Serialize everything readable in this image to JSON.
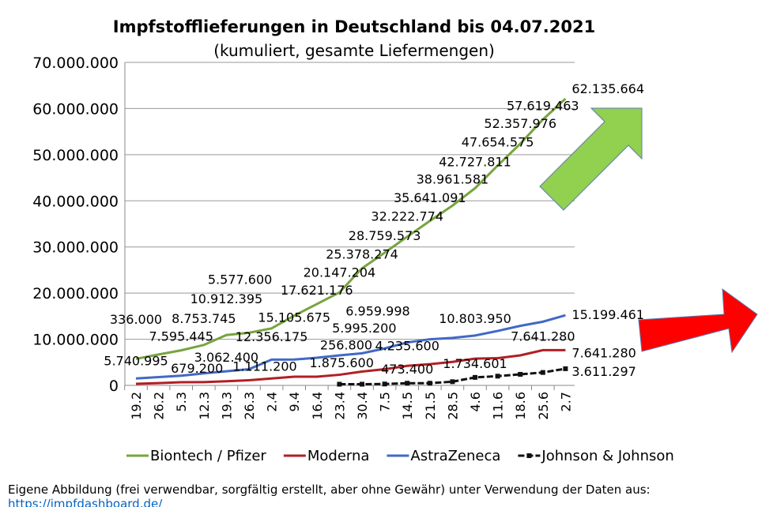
{
  "chart_data": {
    "type": "line",
    "title": "Impfstofflieferungen in Deutschland bis 04.07.2021",
    "subtitle": "(kumuliert, gesamte Liefermengen)",
    "xlabel": "",
    "ylabel": "",
    "ylim": [
      0,
      70000000
    ],
    "yticks": [
      "0",
      "10.000.000",
      "20.000.000",
      "30.000.000",
      "40.000.000",
      "50.000.000",
      "60.000.000",
      "70.000.000"
    ],
    "grid": true,
    "legend": "bottom",
    "categories": [
      "19.2",
      "26.2",
      "5.3",
      "12.3",
      "19.3",
      "26.3",
      "2.4",
      "9.4",
      "16.4",
      "23.4",
      "30.4",
      "7.5",
      "14.5",
      "21.5",
      "28.5",
      "4.6",
      "11.6",
      "18.6",
      "25.6",
      "2.7"
    ],
    "series": [
      {
        "name": "Biontech / Pfizer",
        "color": "#77a43f",
        "marker": false,
        "values": [
          5740995,
          6700000,
          7595445,
          8753745,
          10912395,
          11400000,
          12356175,
          15105675,
          17621176,
          20147204,
          25378274,
          28759573,
          32222774,
          35641091,
          38961581,
          42727811,
          47654575,
          52357976,
          57619463,
          62135664
        ],
        "labels": [
          "5.740.995",
          "",
          "7.595.445",
          "8.753.745",
          "10.912.395",
          "",
          "12.356.175",
          "15.105.675",
          "17.621.176",
          "20.147.204",
          "25.378.274",
          "28.759.573",
          "32.222.774",
          "35.641.091",
          "38.961.581",
          "42.727.811",
          "47.654.575",
          "52.357.976",
          "57.619.463",
          "62.135.664"
        ]
      },
      {
        "name": "Moderna",
        "color": "#b11f24",
        "marker": false,
        "values": [
          336000,
          500000,
          679200,
          700000,
          900000,
          1111200,
          1500000,
          1875600,
          1875600,
          2300000,
          3000000,
          3500000,
          4235600,
          4600000,
          5100000,
          5800000,
          5900000,
          6500000,
          7641280,
          7641280
        ],
        "labels": [
          "336.000",
          "",
          "679.200",
          "",
          "",
          "1.111.200",
          "",
          "1.875.600",
          "",
          "",
          "",
          "",
          "4.235.600",
          "",
          "",
          "",
          "",
          "",
          "7.641.280",
          "7.641.280"
        ]
      },
      {
        "name": "AstraZeneca",
        "color": "#4169c4",
        "marker": false,
        "values": [
          1500000,
          1800000,
          2100000,
          2600000,
          3062400,
          3500000,
          5577600,
          5600000,
          5995200,
          6500000,
          6959998,
          8000000,
          9300000,
          10000000,
          10300000,
          10803950,
          11800000,
          12900000,
          13800000,
          15199461
        ],
        "labels": [
          "",
          "",
          "",
          "",
          "3.062.400",
          "",
          "5.577.600",
          "",
          "5.995.200",
          "",
          "6.959.998",
          "",
          "",
          "",
          "",
          "10.803.950",
          "",
          "",
          "",
          "15.199.461"
        ]
      },
      {
        "name": "Johnson & Johnson",
        "color": "#111111",
        "marker": true,
        "values": [
          null,
          null,
          null,
          null,
          null,
          null,
          null,
          null,
          null,
          256800,
          256800,
          300000,
          473400,
          473400,
          800000,
          1734601,
          2000000,
          2400000,
          2800000,
          3611297
        ],
        "labels": [
          "",
          "",
          "",
          "",
          "",
          "",
          "",
          "",
          "",
          "",
          "256.800",
          "",
          "473.400",
          "",
          "",
          "1.734.601",
          "",
          "",
          "",
          "3.611.297"
        ]
      }
    ]
  },
  "footer": {
    "text": "Eigene Abbildung (frei verwendbar, sorgfältig erstellt, aber ohne Gewähr) unter Verwendung der Daten aus: ",
    "link": "https://impfdashboard.de/"
  },
  "decorations": {
    "up_arrow_color": "#92d050",
    "right_arrow_color": "#ff0000"
  }
}
